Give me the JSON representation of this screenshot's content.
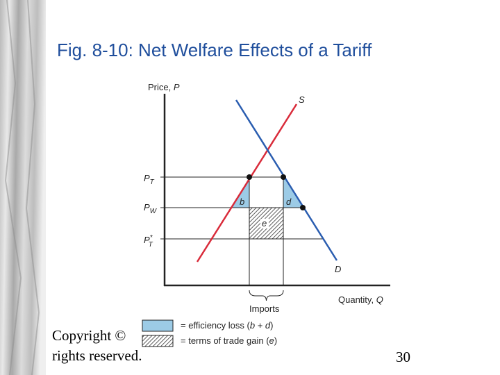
{
  "header": {
    "title": "Fig. 8-10: Net Welfare Effects of a Tariff"
  },
  "diagram": {
    "y_axis_label": {
      "text": "Price, ",
      "symbol": "P"
    },
    "x_axis_label": {
      "text": "Quantity, ",
      "symbol": "Q"
    },
    "curves": [
      {
        "label": "S"
      },
      {
        "label": "D"
      }
    ],
    "price_levels": [
      {
        "symbol": "P",
        "subscript": "T"
      },
      {
        "symbol": "P",
        "subscript": "W"
      },
      {
        "symbol": "P",
        "superscript": "*",
        "subscript": "T"
      }
    ],
    "regions": [
      {
        "label": "b"
      },
      {
        "label": "d"
      },
      {
        "label": "e"
      }
    ],
    "bracket_label": "Imports",
    "legend": [
      {
        "text": "= efficiency loss (",
        "a": "b",
        "plus": " + ",
        "b": "d",
        "close": ")"
      },
      {
        "text": "= terms of trade gain (",
        "a": "e",
        "close": ")"
      }
    ]
  },
  "footer": {
    "copyright_lines": [
      "Copyright ©",
      "rights reserved."
    ],
    "page_number": "30"
  }
}
